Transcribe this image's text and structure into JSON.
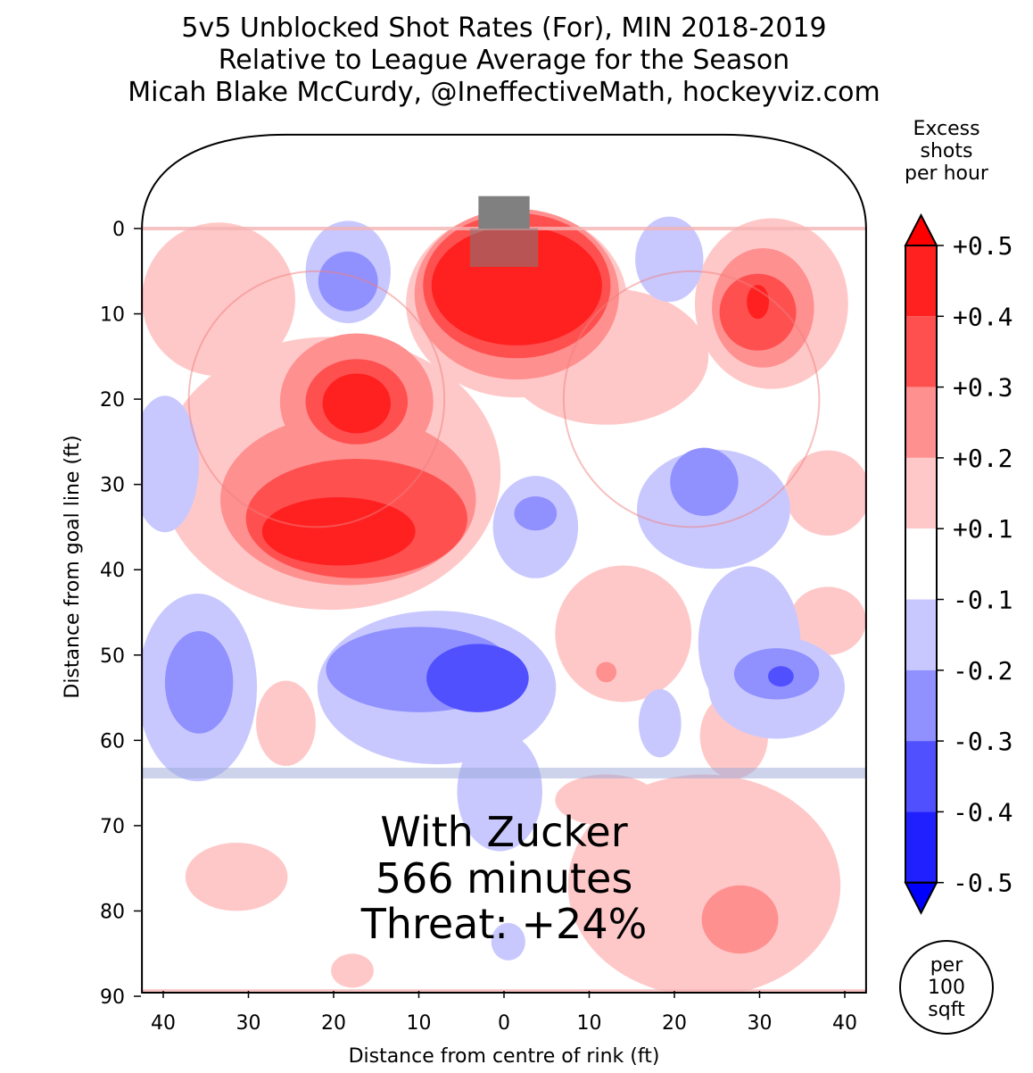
{
  "chart_data": {
    "type": "heatmap",
    "title_lines": [
      "5v5 Unblocked Shot Rates (For), MIN 2018-2019",
      "Relative to League Average for the Season",
      "Micah Blake McCurdy, @IneffectiveMath, hockeyviz.com"
    ],
    "xlabel": "Distance from centre of rink (ft)",
    "ylabel": "Distance from goal line (ft)",
    "xlim": [
      -42.5,
      42.5
    ],
    "ylim": [
      90,
      -11
    ],
    "x_ticks": [
      {
        "value": -40,
        "label": "40"
      },
      {
        "value": -30,
        "label": "30"
      },
      {
        "value": -20,
        "label": "20"
      },
      {
        "value": -10,
        "label": "10"
      },
      {
        "value": 0,
        "label": "0"
      },
      {
        "value": 10,
        "label": "10"
      },
      {
        "value": 20,
        "label": "20"
      },
      {
        "value": 30,
        "label": "30"
      },
      {
        "value": 40,
        "label": "40"
      }
    ],
    "y_ticks": [
      0,
      10,
      20,
      30,
      40,
      50,
      60,
      70,
      80,
      90
    ],
    "annotation": [
      "With Zucker",
      "566 minutes",
      "Threat: +24%"
    ],
    "colorbar": {
      "label_lines": [
        "Excess",
        "shots",
        "per hour"
      ],
      "ticks": [
        "+0.5",
        "+0.4",
        "+0.3",
        "+0.2",
        "+0.1",
        "-0.1",
        "-0.2",
        "-0.3",
        "-0.4",
        "-0.5"
      ],
      "colors": {
        "4": "#ff2020",
        "3": "#ff5050",
        "2": "#ff9090",
        "1": "#ffc8c8",
        "0": "#ffffff",
        "-1": "#c8c8ff",
        "-2": "#9090ff",
        "-3": "#5050ff",
        "-4": "#2020ff"
      },
      "over_color": "#ff0000",
      "under_color": "#0000ff",
      "unit_lines": [
        "per",
        "100",
        "sqft"
      ]
    },
    "regions": [
      {
        "x": -33.5,
        "y": 8.3,
        "rx": 9,
        "ry": 9,
        "level": 1
      },
      {
        "x": 1.5,
        "y": 8.8,
        "rx": 13,
        "ry": 11,
        "level": 1
      },
      {
        "x": -20.4,
        "y": 28.7,
        "rx": 20,
        "ry": 16,
        "level": 1
      },
      {
        "x": 12,
        "y": 15,
        "rx": 12,
        "ry": 8,
        "level": 1
      },
      {
        "x": 31.4,
        "y": 8.8,
        "rx": 9,
        "ry": 10,
        "level": 1
      },
      {
        "x": 38,
        "y": 31,
        "rx": 5,
        "ry": 5,
        "level": 1
      },
      {
        "x": 38,
        "y": 46,
        "rx": 4.5,
        "ry": 4,
        "level": 1
      },
      {
        "x": 14,
        "y": 47.5,
        "rx": 8,
        "ry": 8,
        "level": 1
      },
      {
        "x": 27,
        "y": 59.5,
        "rx": 4,
        "ry": 5,
        "level": 1
      },
      {
        "x": -25.6,
        "y": 58,
        "rx": 3.5,
        "ry": 5,
        "level": 1
      },
      {
        "x": 23.5,
        "y": 77,
        "rx": 16,
        "ry": 13,
        "level": 1
      },
      {
        "x": 12,
        "y": 67,
        "rx": 6,
        "ry": 3,
        "level": 1
      },
      {
        "x": -31.4,
        "y": 76,
        "rx": 6,
        "ry": 4,
        "level": 1
      },
      {
        "x": -17.8,
        "y": 87,
        "rx": 2.5,
        "ry": 2,
        "level": 1
      },
      {
        "x": 1.5,
        "y": 7.7,
        "rx": 12,
        "ry": 10,
        "level": 2
      },
      {
        "x": -18.3,
        "y": 31.8,
        "rx": 15,
        "ry": 10,
        "level": 2
      },
      {
        "x": -17.3,
        "y": 20.3,
        "rx": 9,
        "ry": 8,
        "level": 2
      },
      {
        "x": 30.4,
        "y": 9.3,
        "rx": 6,
        "ry": 7,
        "level": 2
      },
      {
        "x": 27.7,
        "y": 81,
        "rx": 4.5,
        "ry": 4,
        "level": 2
      },
      {
        "x": 12,
        "y": 52,
        "rx": 1.2,
        "ry": 1.2,
        "level": 2
      },
      {
        "x": 1.5,
        "y": 6.7,
        "rx": 11,
        "ry": 8.5,
        "level": 3
      },
      {
        "x": -17.3,
        "y": 34,
        "rx": 13,
        "ry": 7,
        "level": 3
      },
      {
        "x": -17.3,
        "y": 20.3,
        "rx": 6,
        "ry": 5,
        "level": 3
      },
      {
        "x": 29.8,
        "y": 9.8,
        "rx": 4.5,
        "ry": 4.5,
        "level": 3
      },
      {
        "x": 1.5,
        "y": 6.7,
        "rx": 10,
        "ry": 7,
        "level": 4
      },
      {
        "x": -19.4,
        "y": 35.5,
        "rx": 9,
        "ry": 4,
        "level": 4
      },
      {
        "x": -17.3,
        "y": 20.5,
        "rx": 4,
        "ry": 3.5,
        "level": 4
      },
      {
        "x": 29.8,
        "y": 8.6,
        "rx": 1.3,
        "ry": 2,
        "level": 4
      },
      {
        "x": -18.3,
        "y": 5.1,
        "rx": 5,
        "ry": 6,
        "level": -1
      },
      {
        "x": 19.4,
        "y": 3.6,
        "rx": 4,
        "ry": 5,
        "level": -1
      },
      {
        "x": -39.8,
        "y": 27.6,
        "rx": 4,
        "ry": 8,
        "level": -1
      },
      {
        "x": -36,
        "y": 53.8,
        "rx": 7,
        "ry": 11,
        "level": -1
      },
      {
        "x": -7.9,
        "y": 53.8,
        "rx": 14,
        "ry": 9,
        "level": -1
      },
      {
        "x": -0.5,
        "y": 66,
        "rx": 5,
        "ry": 7,
        "level": -1
      },
      {
        "x": 3.7,
        "y": 35,
        "rx": 5,
        "ry": 6,
        "level": -1
      },
      {
        "x": 24.6,
        "y": 32.9,
        "rx": 9,
        "ry": 7,
        "level": -1
      },
      {
        "x": 28.8,
        "y": 48.6,
        "rx": 6,
        "ry": 9,
        "level": -1
      },
      {
        "x": 32,
        "y": 53.8,
        "rx": 8,
        "ry": 6,
        "level": -1
      },
      {
        "x": 18.3,
        "y": 58,
        "rx": 2.5,
        "ry": 4,
        "level": -1
      },
      {
        "x": 0.5,
        "y": 83.6,
        "rx": 2,
        "ry": 2.2,
        "level": -1
      },
      {
        "x": -18.3,
        "y": 6.2,
        "rx": 3.5,
        "ry": 3.5,
        "level": -2
      },
      {
        "x": -35.8,
        "y": 53.2,
        "rx": 4,
        "ry": 6,
        "level": -2
      },
      {
        "x": -9.9,
        "y": 51.7,
        "rx": 11,
        "ry": 5,
        "level": -2
      },
      {
        "x": 3.7,
        "y": 33.4,
        "rx": 2.5,
        "ry": 2,
        "level": -2
      },
      {
        "x": 23.5,
        "y": 29.7,
        "rx": 4,
        "ry": 4,
        "level": -2
      },
      {
        "x": 32,
        "y": 52.2,
        "rx": 5,
        "ry": 3,
        "level": -2
      },
      {
        "x": -3.1,
        "y": 52.7,
        "rx": 6,
        "ry": 4,
        "level": -3
      },
      {
        "x": 32.5,
        "y": 52.5,
        "rx": 1.5,
        "ry": 1.2,
        "level": -3
      }
    ]
  }
}
